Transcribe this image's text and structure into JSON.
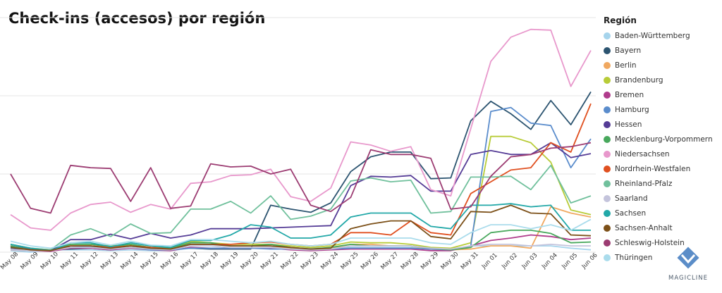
{
  "title": "Check-ins (accesos) por región",
  "legend_title": "Región",
  "brand": "MAGICLINE",
  "chart_data": {
    "type": "line",
    "title": "Check-ins (accesos) por región",
    "grid": "horizontal",
    "legend_placement": "right",
    "categories": [
      "May 08",
      "May 09",
      "May 10",
      "May 11",
      "May 12",
      "May 13",
      "May 14",
      "May 15",
      "May 16",
      "May 17",
      "May 18",
      "May 19",
      "May 20",
      "May 21",
      "May 22",
      "May 23",
      "May 24",
      "May 25",
      "May 26",
      "May 27",
      "May 28",
      "May 29",
      "May 30",
      "May 31",
      "Jun 01",
      "Jun 02",
      "Jun 03",
      "Jun 04",
      "Jun 05",
      "Jun 06"
    ],
    "ylim": [
      0,
      300
    ],
    "series": [
      {
        "name": "Baden-Württemberg",
        "color": "#a6d4ec",
        "values": [
          2,
          0,
          3,
          3,
          3,
          2,
          3,
          2,
          2,
          5,
          4,
          4,
          5,
          6,
          5,
          5,
          5,
          6,
          6,
          6,
          6,
          4,
          3,
          8,
          8,
          8,
          8,
          8,
          5,
          3
        ]
      },
      {
        "name": "Bayern",
        "color": "#2c5470",
        "values": [
          7,
          3,
          3,
          4,
          5,
          3,
          6,
          4,
          4,
          5,
          4,
          4,
          4,
          60,
          55,
          51,
          63,
          103,
          122,
          128,
          128,
          94,
          95,
          168,
          193,
          177,
          157,
          194,
          163,
          205
        ]
      },
      {
        "name": "Berlin",
        "color": "#f0a860",
        "values": [
          8,
          3,
          2,
          6,
          8,
          5,
          9,
          4,
          3,
          13,
          12,
          8,
          8,
          8,
          5,
          3,
          5,
          10,
          10,
          8,
          8,
          4,
          3,
          4,
          8,
          8,
          5,
          58,
          50,
          45
        ]
      },
      {
        "name": "Brandenburg",
        "color": "#b8cc38",
        "values": [
          10,
          5,
          3,
          10,
          10,
          8,
          10,
          6,
          5,
          14,
          12,
          10,
          10,
          10,
          8,
          6,
          8,
          13,
          12,
          12,
          10,
          6,
          5,
          12,
          148,
          148,
          140,
          115,
          54,
          48
        ]
      },
      {
        "name": "Bremen",
        "color": "#b03c8c",
        "values": [
          5,
          2,
          1,
          5,
          5,
          3,
          5,
          3,
          2,
          6,
          5,
          5,
          5,
          5,
          3,
          2,
          3,
          4,
          4,
          4,
          4,
          2,
          2,
          8,
          15,
          18,
          22,
          20,
          16,
          18
        ]
      },
      {
        "name": "Hamburg",
        "color": "#5a8ccc",
        "values": [
          5,
          3,
          3,
          6,
          7,
          4,
          6,
          3,
          3,
          5,
          5,
          5,
          5,
          4,
          4,
          3,
          4,
          5,
          5,
          5,
          5,
          4,
          3,
          8,
          180,
          185,
          165,
          162,
          108,
          145
        ]
      },
      {
        "name": "Hessen",
        "color": "#553c96",
        "values": [
          8,
          4,
          2,
          16,
          16,
          23,
          17,
          24,
          18,
          22,
          30,
          30,
          30,
          31,
          32,
          33,
          34,
          85,
          97,
          96,
          98,
          78,
          78,
          125,
          130,
          125,
          125,
          140,
          121,
          126
        ]
      },
      {
        "name": "Mecklenburg-Vorpommern",
        "color": "#48a85c",
        "values": [
          8,
          3,
          2,
          10,
          10,
          7,
          10,
          6,
          5,
          12,
          12,
          8,
          8,
          10,
          6,
          4,
          6,
          10,
          8,
          8,
          8,
          5,
          3,
          6,
          25,
          28,
          28,
          24,
          12,
          13
        ]
      },
      {
        "name": "Niedersachsen",
        "color": "#e898cc",
        "values": [
          48,
          31,
          28,
          50,
          61,
          64,
          51,
          61,
          55,
          88,
          90,
          98,
          99,
          106,
          71,
          65,
          82,
          141,
          137,
          129,
          135,
          80,
          72,
          158,
          244,
          275,
          285,
          284,
          212,
          258
        ]
      },
      {
        "name": "Nordrhein-Westfalen",
        "color": "#e05020",
        "values": [
          3,
          2,
          2,
          8,
          8,
          6,
          8,
          6,
          4,
          10,
          10,
          10,
          12,
          13,
          10,
          8,
          10,
          25,
          25,
          22,
          40,
          25,
          22,
          75,
          90,
          105,
          108,
          140,
          128,
          190
        ]
      },
      {
        "name": "Rheinland-Pfalz",
        "color": "#70c09c",
        "values": [
          10,
          5,
          3,
          22,
          30,
          20,
          36,
          24,
          25,
          55,
          55,
          65,
          50,
          72,
          42,
          46,
          55,
          91,
          95,
          90,
          92,
          50,
          52,
          96,
          96,
          97,
          80,
          111,
          63,
          72
        ]
      },
      {
        "name": "Saarland",
        "color": "#c4c4dc",
        "values": [
          3,
          2,
          2,
          6,
          6,
          4,
          6,
          4,
          3,
          8,
          8,
          6,
          6,
          6,
          4,
          3,
          4,
          8,
          8,
          8,
          8,
          5,
          4,
          8,
          10,
          10,
          8,
          10,
          8,
          8
        ]
      },
      {
        "name": "Sachsen",
        "color": "#22a8a8",
        "values": [
          10,
          5,
          2,
          12,
          12,
          7,
          12,
          8,
          6,
          15,
          15,
          22,
          35,
          32,
          18,
          18,
          22,
          45,
          50,
          50,
          50,
          33,
          30,
          60,
          60,
          62,
          58,
          60,
          28,
          28
        ]
      },
      {
        "name": "Sachsen-Anhalt",
        "color": "#7c5018",
        "values": [
          6,
          3,
          2,
          8,
          8,
          5,
          8,
          5,
          4,
          10,
          10,
          8,
          8,
          8,
          6,
          4,
          5,
          30,
          36,
          40,
          40,
          20,
          17,
          52,
          51,
          60,
          50,
          49,
          22,
          21
        ]
      },
      {
        "name": "Schleswig-Holstein",
        "color": "#9c3c72",
        "values": [
          100,
          56,
          50,
          111,
          108,
          107,
          65,
          108,
          56,
          59,
          113,
          109,
          110,
          100,
          106,
          60,
          52,
          70,
          131,
          125,
          125,
          120,
          55,
          58,
          97,
          122,
          125,
          133,
          135,
          140
        ]
      },
      {
        "name": "Thüringen",
        "color": "#aadcec",
        "values": [
          14,
          8,
          5,
          12,
          14,
          9,
          14,
          9,
          8,
          16,
          16,
          14,
          12,
          14,
          10,
          8,
          10,
          18,
          18,
          18,
          18,
          12,
          10,
          25,
          35,
          35,
          30,
          35,
          28,
          42
        ]
      }
    ]
  }
}
